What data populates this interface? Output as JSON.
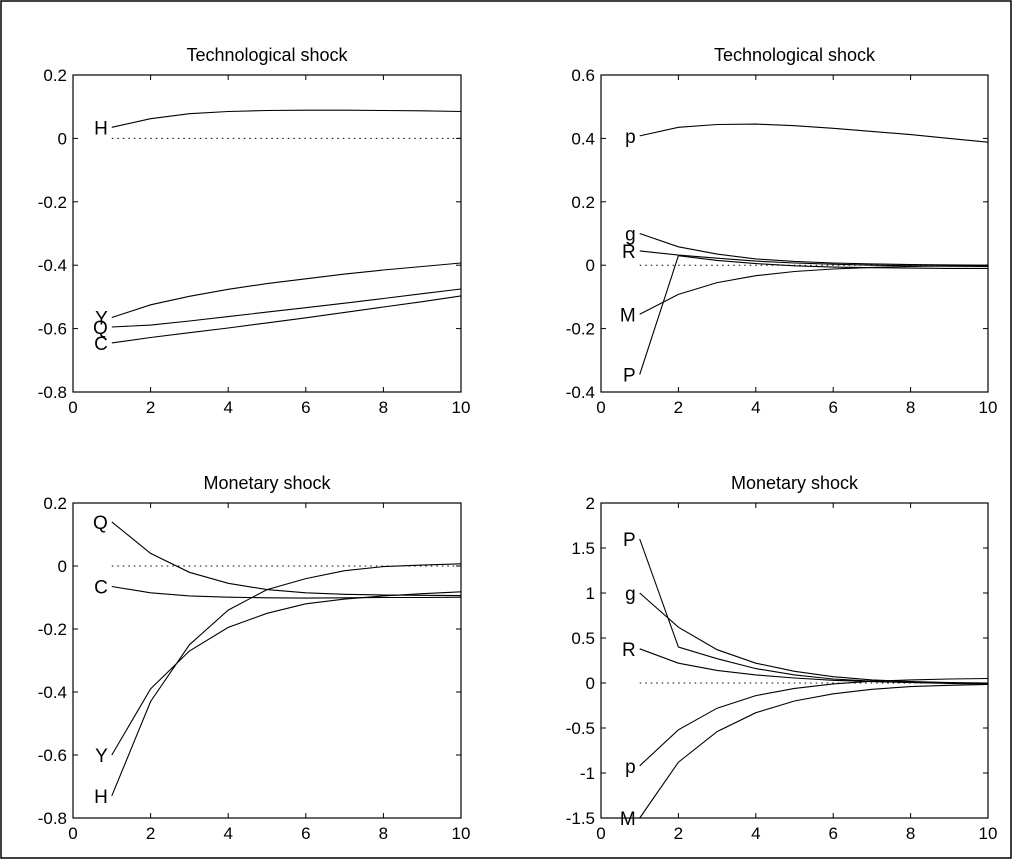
{
  "chart_data": [
    {
      "type": "line",
      "title": "Technological shock",
      "xlim": [
        0,
        10
      ],
      "ylim": [
        -0.8,
        0.2
      ],
      "xticks": [
        0,
        2,
        4,
        6,
        8,
        10
      ],
      "xtick_labels": [
        "0",
        "2",
        "4",
        "6",
        "8",
        "10"
      ],
      "yticks": [
        -0.8,
        -0.6,
        -0.4,
        -0.2,
        0,
        0.2
      ],
      "ytick_labels": [
        "-0.8",
        "-0.6",
        "-0.4",
        "-0.2",
        "0",
        "0.2"
      ],
      "zero_line": "dotted",
      "grid": false,
      "x": [
        1,
        2,
        3,
        4,
        5,
        6,
        7,
        8,
        9,
        10
      ],
      "series": [
        {
          "label": "H",
          "values": [
            0.035,
            0.062,
            0.078,
            0.085,
            0.088,
            0.089,
            0.089,
            0.088,
            0.087,
            0.085
          ]
        },
        {
          "label": "Y",
          "values": [
            -0.565,
            -0.525,
            -0.498,
            -0.476,
            -0.458,
            -0.443,
            -0.428,
            -0.415,
            -0.404,
            -0.393
          ]
        },
        {
          "label": "Q",
          "values": [
            -0.595,
            -0.589,
            -0.576,
            -0.562,
            -0.548,
            -0.534,
            -0.52,
            -0.505,
            -0.49,
            -0.475
          ]
        },
        {
          "label": "C",
          "values": [
            -0.645,
            -0.628,
            -0.613,
            -0.598,
            -0.582,
            -0.566,
            -0.549,
            -0.532,
            -0.515,
            -0.497
          ]
        }
      ]
    },
    {
      "type": "line",
      "title": "Technological shock",
      "xlim": [
        0,
        10
      ],
      "ylim": [
        -0.4,
        0.6
      ],
      "xticks": [
        0,
        2,
        4,
        6,
        8,
        10
      ],
      "xtick_labels": [
        "0",
        "2",
        "4",
        "6",
        "8",
        "10"
      ],
      "yticks": [
        -0.4,
        -0.2,
        0,
        0.2,
        0.4,
        0.6
      ],
      "ytick_labels": [
        "-0.4",
        "-0.2",
        "0",
        "0.2",
        "0.4",
        "0.6"
      ],
      "zero_line": "dotted",
      "grid": false,
      "x": [
        1,
        2,
        3,
        4,
        5,
        6,
        7,
        8,
        9,
        10
      ],
      "series": [
        {
          "label": "p",
          "values": [
            0.408,
            0.435,
            0.444,
            0.445,
            0.44,
            0.432,
            0.422,
            0.412,
            0.4,
            0.388
          ]
        },
        {
          "label": "g",
          "values": [
            0.1,
            0.058,
            0.035,
            0.02,
            0.012,
            0.007,
            0.004,
            0.002,
            0.001,
            0.0
          ]
        },
        {
          "label": "R",
          "values": [
            0.045,
            0.032,
            0.022,
            0.013,
            0.007,
            0.003,
            0.0,
            -0.002,
            -0.003,
            -0.004
          ]
        },
        {
          "label": "M",
          "values": [
            -0.155,
            -0.092,
            -0.055,
            -0.033,
            -0.02,
            -0.012,
            -0.007,
            -0.004,
            -0.002,
            -0.001
          ]
        },
        {
          "label": "P",
          "values": [
            -0.345,
            0.03,
            0.015,
            0.005,
            -0.002,
            -0.006,
            -0.008,
            -0.009,
            -0.01,
            -0.01
          ]
        }
      ]
    },
    {
      "type": "line",
      "title": "Monetary shock",
      "xlim": [
        0,
        10
      ],
      "ylim": [
        -0.8,
        0.2
      ],
      "xticks": [
        0,
        2,
        4,
        6,
        8,
        10
      ],
      "xtick_labels": [
        "0",
        "2",
        "4",
        "6",
        "8",
        "10"
      ],
      "yticks": [
        -0.8,
        -0.6,
        -0.4,
        -0.2,
        0,
        0.2
      ],
      "ytick_labels": [
        "-0.8",
        "-0.6",
        "-0.4",
        "-0.2",
        "0",
        "0.2"
      ],
      "zero_line": "dotted",
      "grid": false,
      "x": [
        1,
        2,
        3,
        4,
        5,
        6,
        7,
        8,
        9,
        10
      ],
      "series": [
        {
          "label": "Q",
          "values": [
            0.14,
            0.04,
            -0.02,
            -0.055,
            -0.075,
            -0.085,
            -0.09,
            -0.092,
            -0.093,
            -0.094
          ]
        },
        {
          "label": "C",
          "values": [
            -0.065,
            -0.085,
            -0.095,
            -0.099,
            -0.101,
            -0.102,
            -0.101,
            -0.1,
            -0.1,
            -0.099
          ]
        },
        {
          "label": "Y",
          "values": [
            -0.6,
            -0.39,
            -0.27,
            -0.195,
            -0.15,
            -0.12,
            -0.105,
            -0.095,
            -0.088,
            -0.082
          ]
        },
        {
          "label": "H",
          "values": [
            -0.73,
            -0.43,
            -0.25,
            -0.14,
            -0.075,
            -0.04,
            -0.015,
            -0.002,
            0.003,
            0.007
          ]
        }
      ]
    },
    {
      "type": "line",
      "title": "Monetary shock",
      "xlim": [
        0,
        10
      ],
      "ylim": [
        -1.5,
        2
      ],
      "xticks": [
        0,
        2,
        4,
        6,
        8,
        10
      ],
      "xtick_labels": [
        "0",
        "2",
        "4",
        "6",
        "8",
        "10"
      ],
      "yticks": [
        -1.5,
        -1,
        -0.5,
        0,
        0.5,
        1,
        1.5,
        2
      ],
      "ytick_labels": [
        "-1.5",
        "-1",
        "-0.5",
        "0",
        "0.5",
        "1",
        "1.5",
        "2"
      ],
      "zero_line": "dotted",
      "grid": false,
      "x": [
        1,
        2,
        3,
        4,
        5,
        6,
        7,
        8,
        9,
        10
      ],
      "series": [
        {
          "label": "P",
          "values": [
            1.6,
            0.4,
            0.27,
            0.16,
            0.09,
            0.045,
            0.02,
            0.005,
            -0.005,
            -0.01
          ]
        },
        {
          "label": "g",
          "values": [
            1.0,
            0.62,
            0.37,
            0.22,
            0.13,
            0.07,
            0.035,
            0.015,
            0.005,
            0.0
          ]
        },
        {
          "label": "R",
          "values": [
            0.38,
            0.22,
            0.14,
            0.09,
            0.055,
            0.03,
            0.015,
            0.005,
            0.0,
            -0.003
          ]
        },
        {
          "label": "p",
          "values": [
            -0.92,
            -0.52,
            -0.28,
            -0.14,
            -0.06,
            -0.01,
            0.02,
            0.035,
            0.045,
            0.05
          ]
        },
        {
          "label": "M",
          "values": [
            -1.5,
            -0.88,
            -0.54,
            -0.33,
            -0.2,
            -0.12,
            -0.07,
            -0.04,
            -0.025,
            -0.015
          ]
        }
      ]
    }
  ]
}
